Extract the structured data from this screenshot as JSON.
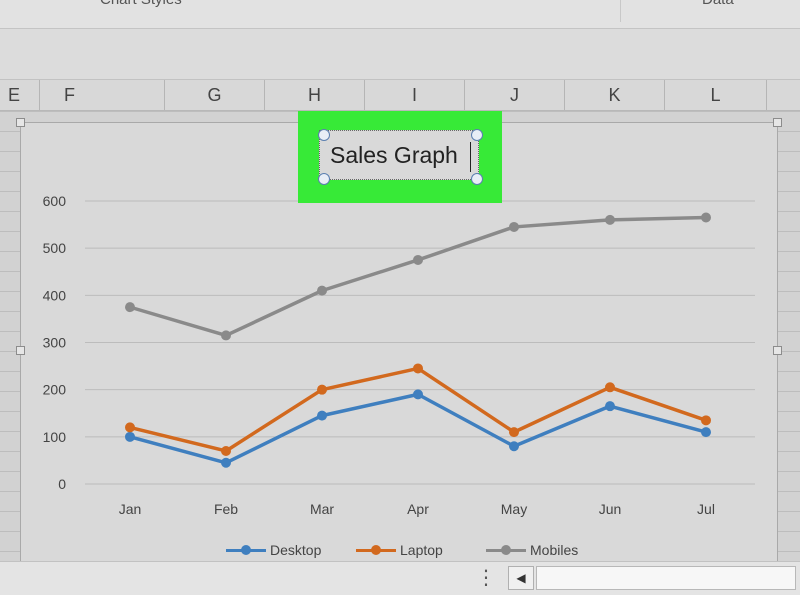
{
  "ribbon": {
    "group_left": "Chart Styles",
    "group_right": "Data"
  },
  "column_headers": [
    "E",
    "F",
    "G",
    "H",
    "I",
    "J",
    "K",
    "L"
  ],
  "colors": {
    "desktop": "#3f7fbf",
    "laptop": "#d2691e",
    "mobiles": "#8a8a8a",
    "highlight": "#37ea37",
    "gridline": "#bcbcbc"
  },
  "chart_data": {
    "type": "line",
    "title": "Sales Graph",
    "categories": [
      "Jan",
      "Feb",
      "Mar",
      "Apr",
      "May",
      "Jun",
      "Jul"
    ],
    "ylim": [
      0,
      600
    ],
    "yticks": [
      "0",
      "100",
      "200",
      "300",
      "400",
      "500",
      "600"
    ],
    "grid": true,
    "legend_position": "bottom",
    "series": [
      {
        "name": "Desktop",
        "values": [
          100,
          45,
          145,
          190,
          80,
          165,
          110
        ],
        "color": "#3f7fbf"
      },
      {
        "name": "Laptop",
        "values": [
          120,
          70,
          200,
          245,
          110,
          205,
          135
        ],
        "color": "#d2691e"
      },
      {
        "name": "Mobiles",
        "values": [
          375,
          315,
          410,
          475,
          545,
          560,
          565
        ],
        "color": "#8a8a8a"
      }
    ]
  },
  "icons": {
    "menu": "vertical-ellipsis-icon",
    "scroll_left": "triangle-left-icon"
  },
  "glyphs": {
    "menu": "⋮",
    "scroll_left": "◀"
  }
}
